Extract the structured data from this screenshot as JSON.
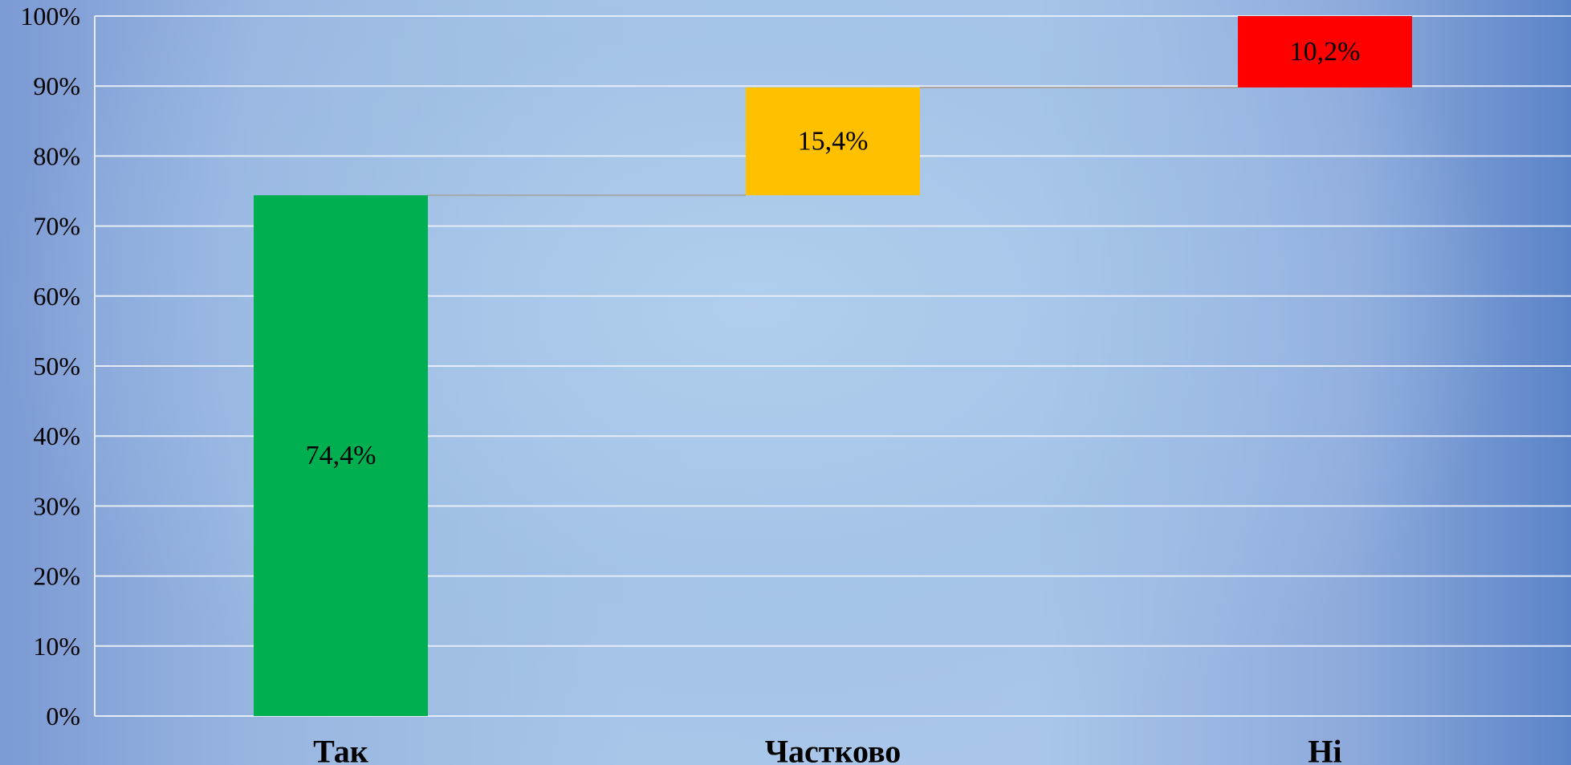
{
  "chart_data": {
    "type": "bar",
    "subtype": "waterfall",
    "title": "",
    "xlabel": "",
    "ylabel": "",
    "categories": [
      "Так",
      "Частково",
      "Ні"
    ],
    "values": [
      74.4,
      15.4,
      10.2
    ],
    "data_labels": [
      "74,4%",
      "15,4%",
      "10,2%"
    ],
    "colors": [
      "#00b050",
      "#ffc000",
      "#ff0000"
    ],
    "connector_color": "#a6a6a6",
    "ylim": [
      0,
      100
    ],
    "y_ticks": [
      0,
      10,
      20,
      30,
      40,
      50,
      60,
      70,
      80,
      90,
      100
    ],
    "y_tick_labels": [
      "0%",
      "10%",
      "20%",
      "30%",
      "40%",
      "50%",
      "60%",
      "70%",
      "80%",
      "90%",
      "100%"
    ],
    "grid": true,
    "grid_color": "#e6ecf5",
    "legend": "none"
  }
}
